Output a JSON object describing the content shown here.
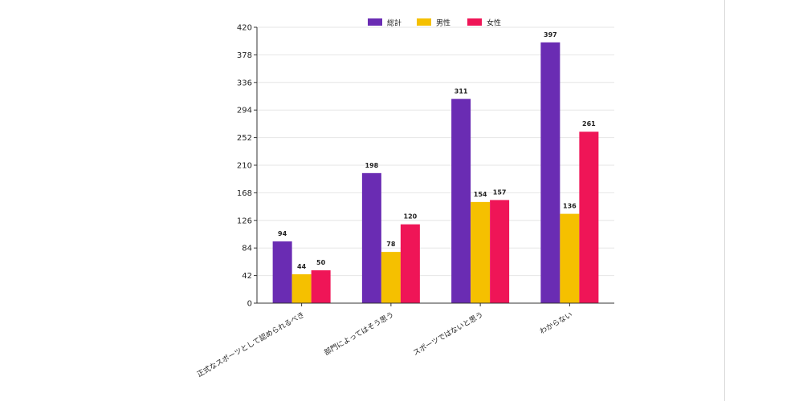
{
  "chart_data": {
    "type": "bar",
    "categories": [
      "正式なスポーツとして認められるべき",
      "部門によってはそう思う",
      "スポーツではないと思う",
      "わからない"
    ],
    "series": [
      {
        "name": "総計",
        "color": "#6a2cb3",
        "values": [
          94,
          198,
          311,
          397
        ]
      },
      {
        "name": "男性",
        "color": "#f5c000",
        "values": [
          44,
          78,
          154,
          136
        ]
      },
      {
        "name": "女性",
        "color": "#ef1557",
        "values": [
          50,
          120,
          157,
          261
        ]
      }
    ],
    "yticks": [
      0,
      42,
      84,
      126,
      168,
      210,
      252,
      294,
      336,
      378,
      420
    ],
    "ylim": [
      0,
      420
    ],
    "grid": true,
    "legend": "top-center",
    "title": "",
    "xlabel": "",
    "ylabel": ""
  }
}
